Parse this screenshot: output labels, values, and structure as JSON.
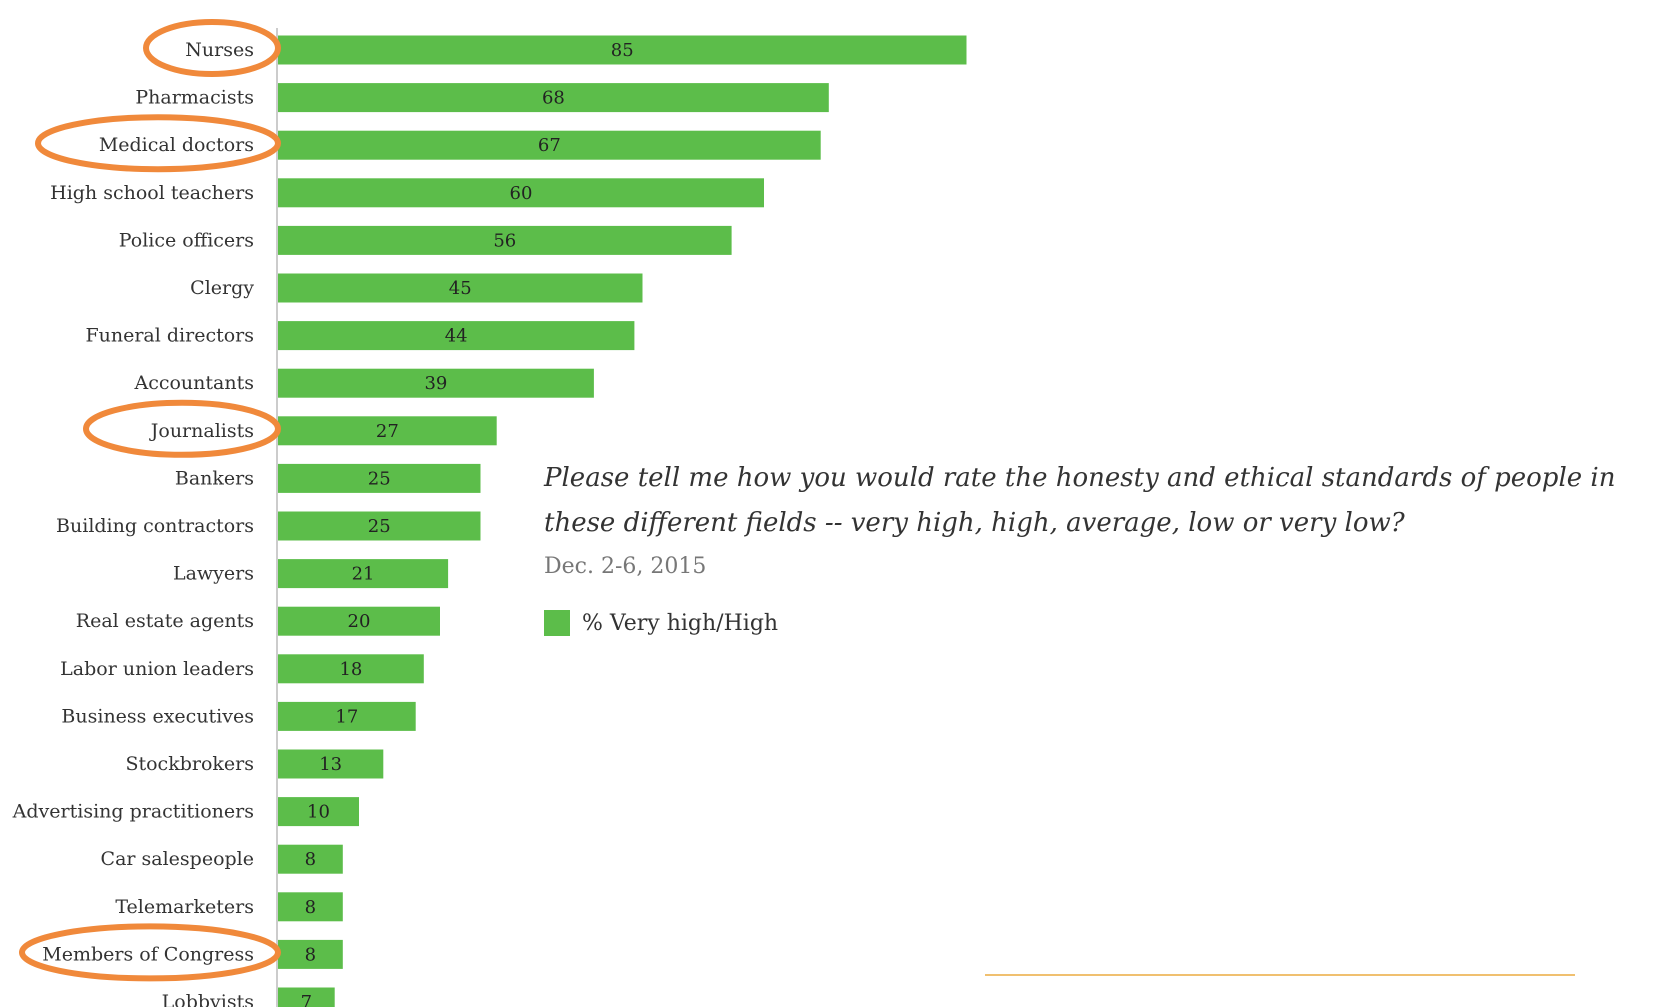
{
  "chart_data": {
    "type": "bar",
    "orientation": "horizontal",
    "categories": [
      "Nurses",
      "Pharmacists",
      "Medical doctors",
      "High school teachers",
      "Police officers",
      "Clergy",
      "Funeral directors",
      "Accountants",
      "Journalists",
      "Bankers",
      "Building contractors",
      "Lawyers",
      "Real estate agents",
      "Labor union leaders",
      "Business executives",
      "Stockbrokers",
      "Advertising practitioners",
      "Car salespeople",
      "Telemarketers",
      "Members of Congress",
      "Lobbyists"
    ],
    "series": [
      {
        "name": "% Very high/High",
        "values": [
          85,
          68,
          67,
          60,
          56,
          45,
          44,
          39,
          27,
          25,
          25,
          21,
          20,
          18,
          17,
          13,
          10,
          8,
          8,
          8,
          7
        ]
      }
    ],
    "highlighted_categories": [
      "Nurses",
      "Medical doctors",
      "Journalists",
      "Members of Congress",
      "Lobbyists"
    ],
    "xlim": [
      0,
      100
    ],
    "grid": false,
    "legend_position": "right"
  },
  "question": "Please tell me how you would rate the honesty and ethical standards of people in these different fields -- very high, high, average, low or very low?",
  "survey_date": "Dec. 2-6, 2015",
  "legend_label": "% Very high/High",
  "colors": {
    "bar": "#5cbd4a",
    "highlight": "#f0893b",
    "decor_line": "#f0c070"
  }
}
